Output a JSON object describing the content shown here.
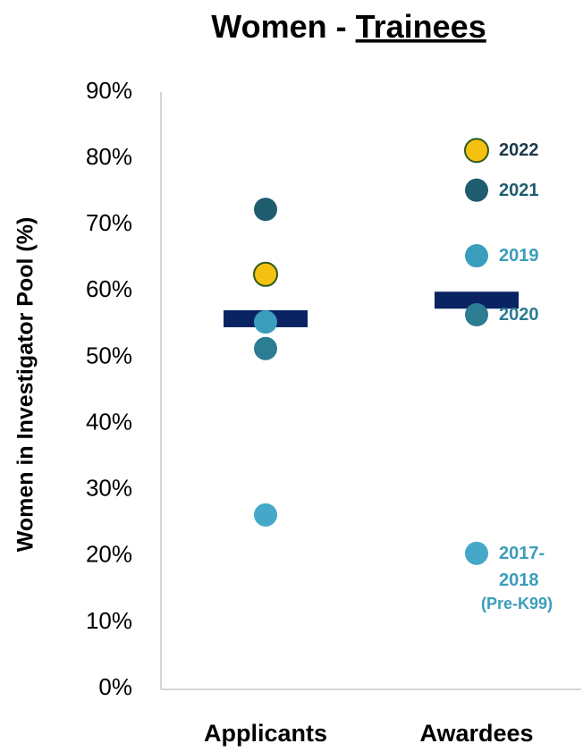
{
  "chart_data": {
    "type": "dot",
    "title": {
      "text": "Women -",
      "underlined": "Trainees"
    },
    "ylabel": "Women in Investigator Pool (%)",
    "categories": [
      "Applicants",
      "Awardees"
    ],
    "ylim": [
      0,
      90
    ],
    "yticks": [
      {
        "value": 0,
        "label": "0%"
      },
      {
        "value": 10,
        "label": "10%"
      },
      {
        "value": 20,
        "label": "20%"
      },
      {
        "value": 30,
        "label": "30%"
      },
      {
        "value": 40,
        "label": "40%"
      },
      {
        "value": 50,
        "label": "50%"
      },
      {
        "value": 60,
        "label": "60%"
      },
      {
        "value": 70,
        "label": "70%"
      },
      {
        "value": 80,
        "label": "80%"
      },
      {
        "value": 90,
        "label": "90%"
      }
    ],
    "means": {
      "values": [
        55.8,
        58.6
      ],
      "color": "#0a2463"
    },
    "series": [
      {
        "name": "2022",
        "color": "#f5c010",
        "stroke": "#2d5a1e",
        "label_color": "#1b3a4b",
        "values": [
          62.5,
          81.2
        ]
      },
      {
        "name": "2021",
        "color": "#1f5c6e",
        "label_color": "#1f5c6e",
        "values": [
          72.3,
          75.2
        ]
      },
      {
        "name": "2019",
        "color": "#3a9dbb",
        "label_color": "#3a9dbb",
        "values": [
          55.3,
          65.3
        ]
      },
      {
        "name": "2020",
        "color": "#2c7c92",
        "label_color": "#2c7c92",
        "values": [
          51.3,
          56.4
        ]
      },
      {
        "name": "2017-2018",
        "note": "(Pre-K99)",
        "color": "#45a8c8",
        "label_color": "#3a9dbb",
        "values": [
          26.2,
          20.4
        ]
      }
    ]
  }
}
